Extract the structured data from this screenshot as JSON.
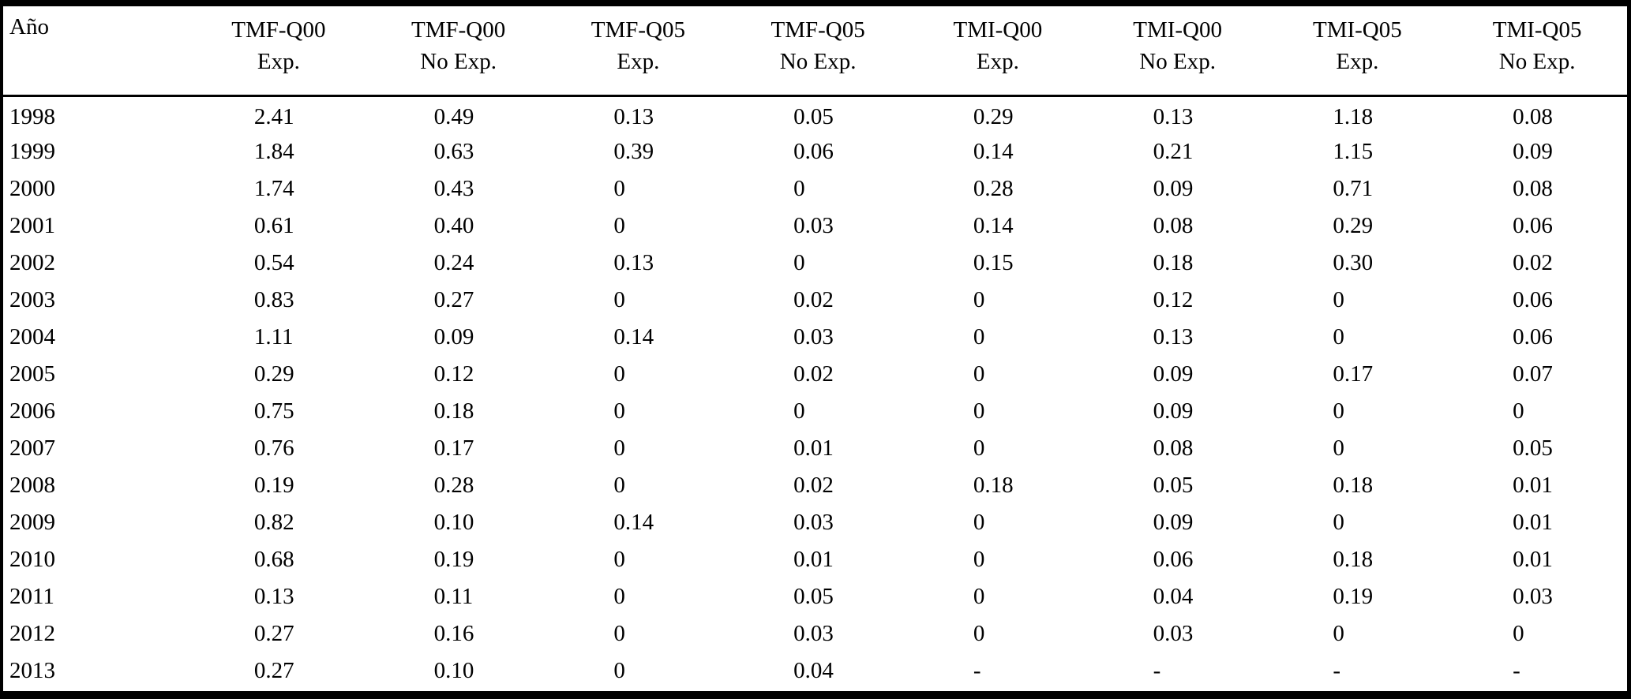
{
  "table": {
    "row_header_label": "Año",
    "columns": [
      {
        "line1": "TMF-Q00",
        "line2": "Exp."
      },
      {
        "line1": "TMF-Q00",
        "line2": "No Exp."
      },
      {
        "line1": "TMF-Q05",
        "line2": "Exp."
      },
      {
        "line1": "TMF-Q05",
        "line2": "No Exp."
      },
      {
        "line1": "TMI-Q00",
        "line2": "Exp."
      },
      {
        "line1": "TMI-Q00",
        "line2": "No Exp."
      },
      {
        "line1": "TMI-Q05",
        "line2": "Exp."
      },
      {
        "line1": "TMI-Q05",
        "line2": "No Exp."
      }
    ],
    "rows": [
      {
        "year": "1998",
        "values": [
          "2.41",
          "0.49",
          "0.13",
          "0.05",
          "0.29",
          "0.13",
          "1.18",
          "0.08"
        ]
      },
      {
        "year": "1999",
        "values": [
          "1.84",
          "0.63",
          "0.39",
          "0.06",
          "0.14",
          "0.21",
          "1.15",
          "0.09"
        ]
      },
      {
        "year": "2000",
        "values": [
          "1.74",
          "0.43",
          "0",
          "0",
          "0.28",
          "0.09",
          "0.71",
          "0.08"
        ]
      },
      {
        "year": "2001",
        "values": [
          "0.61",
          "0.40",
          "0",
          "0.03",
          "0.14",
          "0.08",
          "0.29",
          "0.06"
        ]
      },
      {
        "year": "2002",
        "values": [
          "0.54",
          "0.24",
          "0.13",
          "0",
          "0.15",
          "0.18",
          "0.30",
          "0.02"
        ]
      },
      {
        "year": "2003",
        "values": [
          "0.83",
          "0.27",
          "0",
          "0.02",
          "0",
          "0.12",
          "0",
          "0.06"
        ]
      },
      {
        "year": "2004",
        "values": [
          "1.11",
          "0.09",
          "0.14",
          "0.03",
          "0",
          "0.13",
          "0",
          "0.06"
        ]
      },
      {
        "year": "2005",
        "values": [
          "0.29",
          "0.12",
          "0",
          "0.02",
          "0",
          "0.09",
          "0.17",
          "0.07"
        ]
      },
      {
        "year": "2006",
        "values": [
          "0.75",
          "0.18",
          "0",
          "0",
          "0",
          "0.09",
          "0",
          "0"
        ]
      },
      {
        "year": "2007",
        "values": [
          "0.76",
          "0.17",
          "0",
          "0.01",
          "0",
          "0.08",
          "0",
          "0.05"
        ]
      },
      {
        "year": "2008",
        "values": [
          "0.19",
          "0.28",
          "0",
          "0.02",
          "0.18",
          "0.05",
          "0.18",
          "0.01"
        ]
      },
      {
        "year": "2009",
        "values": [
          "0.82",
          "0.10",
          "0.14",
          "0.03",
          "0",
          "0.09",
          "0",
          "0.01"
        ]
      },
      {
        "year": "2010",
        "values": [
          "0.68",
          "0.19",
          "0",
          "0.01",
          "0",
          "0.06",
          "0.18",
          "0.01"
        ]
      },
      {
        "year": "2011",
        "values": [
          "0.13",
          "0.11",
          "0",
          "0.05",
          "0",
          "0.04",
          "0.19",
          "0.03"
        ]
      },
      {
        "year": "2012",
        "values": [
          "0.27",
          "0.16",
          "0",
          "0.03",
          "0",
          "0.03",
          "0",
          "0"
        ]
      },
      {
        "year": "2013",
        "values": [
          "0.27",
          "0.10",
          "0",
          "0.04",
          "-",
          "-",
          "-",
          "-"
        ]
      }
    ]
  },
  "colors": {
    "text": "#000000",
    "border": "#000000",
    "background": "#ffffff"
  }
}
